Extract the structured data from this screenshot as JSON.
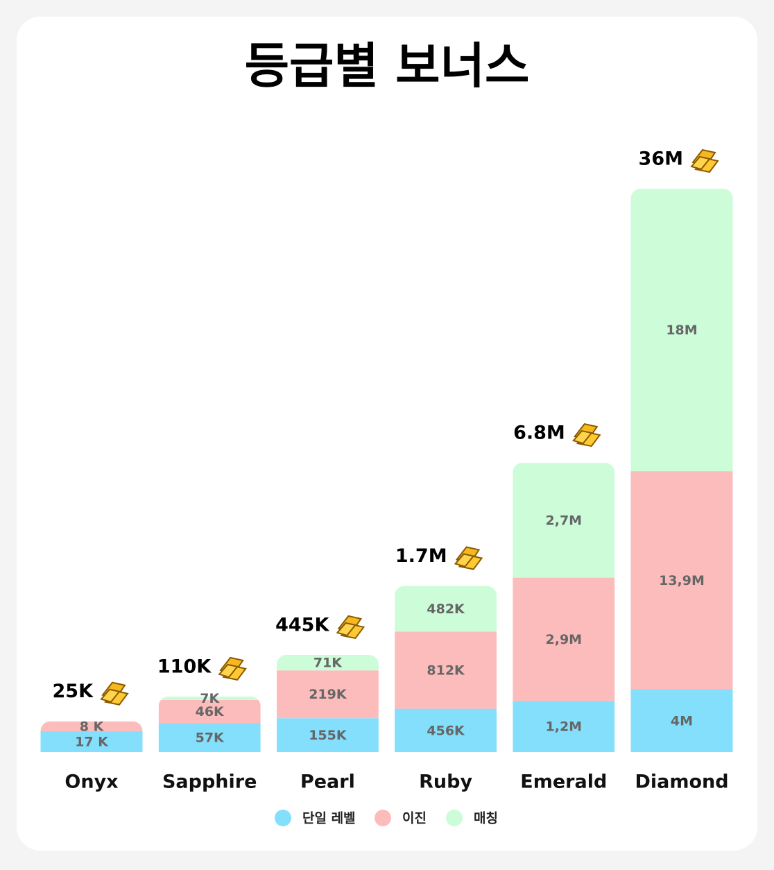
{
  "chart_data": {
    "type": "bar",
    "stacked": true,
    "title": "등급별 보너스",
    "categories": [
      "Onyx",
      "Sapphire",
      "Pearl",
      "Ruby",
      "Emerald",
      "Diamond"
    ],
    "series": [
      {
        "name": "단일 레벨",
        "color": "#84dffc",
        "values": [
          17000,
          57000,
          155000,
          456000,
          1200000,
          4000000
        ],
        "value_labels": [
          "17 K",
          "57K",
          "155K",
          "456K",
          "1,2M",
          "4M"
        ]
      },
      {
        "name": "이진",
        "color": "#fdbcbc",
        "values": [
          8000,
          46000,
          219000,
          812000,
          2900000,
          13900000
        ],
        "value_labels": [
          "8 K",
          "46K",
          "219K",
          "812K",
          "2,9M",
          "13,9M"
        ]
      },
      {
        "name": "매칭",
        "color": "#ccfdd8",
        "values": [
          null,
          7000,
          71000,
          482000,
          2700000,
          18000000
        ],
        "value_labels": [
          null,
          "7K",
          "71K",
          "482K",
          "2,7M",
          "18M"
        ]
      }
    ],
    "totals": {
      "values": [
        25000,
        110000,
        445000,
        1700000,
        6800000,
        36000000
      ],
      "value_labels": [
        "25K",
        "110K",
        "445K",
        "1.7M",
        "6.8M",
        "36M"
      ]
    },
    "legend": "bottom"
  }
}
